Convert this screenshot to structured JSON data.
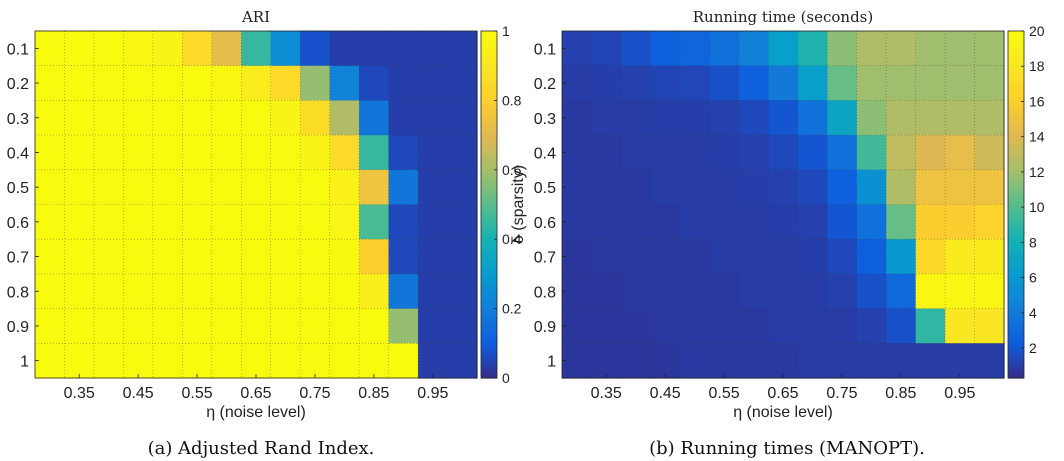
{
  "chart_data": [
    {
      "type": "heatmap",
      "title": "ARI",
      "caption": "(a) Adjusted Rand Index.",
      "xlabel": "η (noise level)",
      "ylabel": "δ (sparsity)",
      "x": [
        0.3,
        0.35,
        0.4,
        0.45,
        0.5,
        0.55,
        0.6,
        0.65,
        0.7,
        0.75,
        0.8,
        0.85,
        0.9,
        0.95,
        1.0
      ],
      "x_tick_labels": [
        "0.35",
        "0.45",
        "0.55",
        "0.65",
        "0.75",
        "0.85",
        "0.95"
      ],
      "y": [
        0.1,
        0.2,
        0.3,
        0.4,
        0.5,
        0.6,
        0.7,
        0.8,
        0.9,
        1
      ],
      "y_tick_labels": [
        "0.1",
        "0.2",
        "0.3",
        "0.4",
        "0.5",
        "0.6",
        "0.7",
        "0.8",
        "0.9",
        "1"
      ],
      "colorbar": {
        "min": 0,
        "max": 1,
        "ticks": [
          "0",
          "0.2",
          "0.4",
          "0.6",
          "0.8",
          "1"
        ],
        "tick_values": [
          0,
          0.2,
          0.4,
          0.6,
          0.8,
          1
        ]
      },
      "colormap": "parula",
      "grid": true,
      "values": [
        [
          1,
          1,
          1,
          0.98,
          0.96,
          0.85,
          0.72,
          0.45,
          0.25,
          0.08,
          0.04,
          0.04,
          0.04,
          0.04,
          0.04
        ],
        [
          1,
          1,
          1,
          1,
          1,
          1,
          0.98,
          0.93,
          0.85,
          0.58,
          0.22,
          0.06,
          0.04,
          0.04,
          0.04
        ],
        [
          1,
          1,
          1,
          1,
          1,
          1,
          1,
          1,
          0.96,
          0.86,
          0.62,
          0.18,
          0.04,
          0.04,
          0.04
        ],
        [
          1,
          1,
          1,
          1,
          1,
          1,
          1,
          1,
          1,
          0.96,
          0.85,
          0.45,
          0.06,
          0.04,
          0.04
        ],
        [
          1,
          1,
          1,
          1,
          1,
          1,
          1,
          1,
          1,
          1,
          0.95,
          0.75,
          0.18,
          0.04,
          0.04
        ],
        [
          1,
          1,
          1,
          1,
          1,
          1,
          1,
          1,
          1,
          1,
          0.97,
          0.48,
          0.06,
          0.04,
          0.04
        ],
        [
          1,
          1,
          1,
          1,
          1,
          1,
          1,
          1,
          1,
          1,
          0.99,
          0.8,
          0.06,
          0.04,
          0.04
        ],
        [
          1,
          1,
          1,
          1,
          1,
          1,
          1,
          1,
          1,
          1,
          1,
          0.94,
          0.18,
          0.04,
          0.04
        ],
        [
          1,
          1,
          1,
          1,
          1,
          1,
          1,
          1,
          1,
          1,
          1,
          1,
          0.58,
          0.04,
          0.04
        ],
        [
          1,
          1,
          1,
          1,
          1,
          1,
          1,
          1,
          1,
          1,
          1,
          1,
          1,
          0.04,
          0.04
        ]
      ]
    },
    {
      "type": "heatmap",
      "title": "Running time (seconds)",
      "caption": "(b) Running times (MANOPT).",
      "xlabel": "η (noise level)",
      "ylabel": "δ (sparsity)",
      "x": [
        0.3,
        0.35,
        0.4,
        0.45,
        0.5,
        0.55,
        0.6,
        0.65,
        0.7,
        0.75,
        0.8,
        0.85,
        0.9,
        0.95,
        1.0
      ],
      "x_tick_labels": [
        "0.35",
        "0.45",
        "0.55",
        "0.65",
        "0.75",
        "0.85",
        "0.95"
      ],
      "y": [
        0.1,
        0.2,
        0.3,
        0.4,
        0.5,
        0.6,
        0.7,
        0.8,
        0.9,
        1
      ],
      "y_tick_labels": [
        "0.1",
        "0.2",
        "0.3",
        "0.4",
        "0.5",
        "0.6",
        "0.7",
        "0.8",
        "0.9",
        "1"
      ],
      "colorbar": {
        "min": 0.3,
        "max": 20,
        "ticks": [
          "2",
          "4",
          "6",
          "8",
          "10",
          "12",
          "14",
          "16",
          "18",
          "20"
        ],
        "tick_values": [
          2,
          4,
          6,
          8,
          10,
          12,
          14,
          16,
          18,
          20
        ]
      },
      "colormap": "parula",
      "grid": true,
      "values": [
        [
          1.2,
          1.3,
          1.8,
          2.5,
          2.8,
          3.5,
          4.5,
          6.5,
          8.5,
          11.5,
          12.5,
          12.5,
          12.0,
          12.0,
          12.0
        ],
        [
          1.0,
          1.1,
          1.2,
          1.3,
          1.4,
          1.8,
          2.5,
          4.0,
          6.5,
          10.5,
          12.0,
          12.0,
          12.0,
          12.0,
          12.0
        ],
        [
          0.9,
          1.0,
          1.0,
          1.1,
          1.1,
          1.2,
          1.5,
          2.0,
          3.5,
          7.0,
          11.5,
          12.5,
          12.5,
          12.5,
          12.5
        ],
        [
          0.9,
          0.9,
          1.0,
          1.0,
          1.0,
          1.1,
          1.2,
          1.5,
          2.0,
          3.5,
          9.5,
          13.0,
          14.0,
          14.5,
          13.5
        ],
        [
          0.9,
          0.9,
          0.9,
          1.0,
          1.0,
          1.0,
          1.1,
          1.2,
          1.5,
          2.5,
          5.5,
          12.5,
          15.0,
          15.0,
          15.0
        ],
        [
          0.9,
          0.9,
          0.9,
          0.9,
          1.0,
          1.0,
          1.0,
          1.1,
          1.2,
          2.0,
          3.5,
          10.5,
          16.0,
          16.0,
          16.5
        ],
        [
          0.8,
          0.9,
          0.9,
          0.9,
          0.9,
          1.0,
          1.0,
          1.0,
          1.1,
          1.5,
          2.5,
          6.0,
          17.0,
          18.5,
          18.5
        ],
        [
          0.8,
          0.8,
          0.9,
          0.9,
          0.9,
          0.9,
          1.0,
          1.0,
          1.0,
          1.2,
          1.8,
          3.0,
          19.5,
          19.5,
          19.5
        ],
        [
          0.8,
          0.8,
          0.8,
          0.9,
          0.9,
          0.9,
          0.9,
          1.0,
          1.0,
          1.0,
          1.2,
          1.8,
          9.0,
          18.0,
          18.0
        ],
        [
          0.8,
          0.8,
          0.8,
          0.8,
          0.9,
          0.9,
          0.9,
          0.9,
          1.0,
          1.0,
          1.0,
          1.0,
          1.0,
          1.0,
          1.0
        ]
      ]
    }
  ]
}
